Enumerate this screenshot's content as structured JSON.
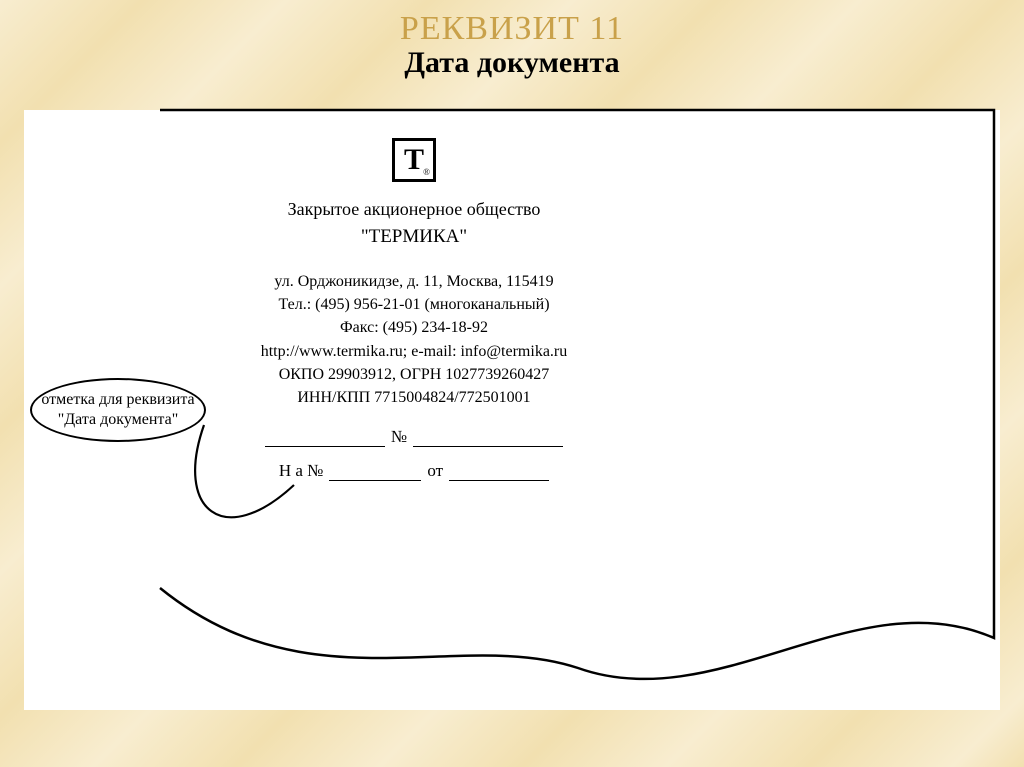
{
  "colors": {
    "bg_light": "#f8edd0",
    "bg_dark": "#f2e0b0",
    "title_gold": "#c9a14a",
    "paper": "#ffffff",
    "ink": "#000000"
  },
  "title": {
    "line1": "РЕКВИЗИТ 11",
    "line2": "Дата документа"
  },
  "logo": {
    "glyph": "T",
    "trademark": "®"
  },
  "letterhead": {
    "org_type": "Закрытое акционерное общество",
    "org_name": "\"ТЕРМИКА\"",
    "address": "ул. Орджоникидзе, д. 11, Москва, 115419",
    "tel": "Тел.: (495) 956-21-01 (многоканальный)",
    "fax": "Факс: (495) 234-18-92",
    "web": "http://www.termika.ru; e-mail: info@termika.ru",
    "okpo_ogrn": "ОКПО 29903912, ОГРН 1027739260427",
    "inn_kpp": "ИНН/КПП 7715004824/772501001",
    "ref_no_label": "№",
    "reply_na": "Н а №",
    "reply_ot": "от"
  },
  "callout": {
    "line1": "отметка для реквизита",
    "line2": "\"Дата документа\""
  },
  "blanks": {
    "date_w": 120,
    "num_w": 150,
    "reply_num_w": 92,
    "reply_date_w": 100
  }
}
